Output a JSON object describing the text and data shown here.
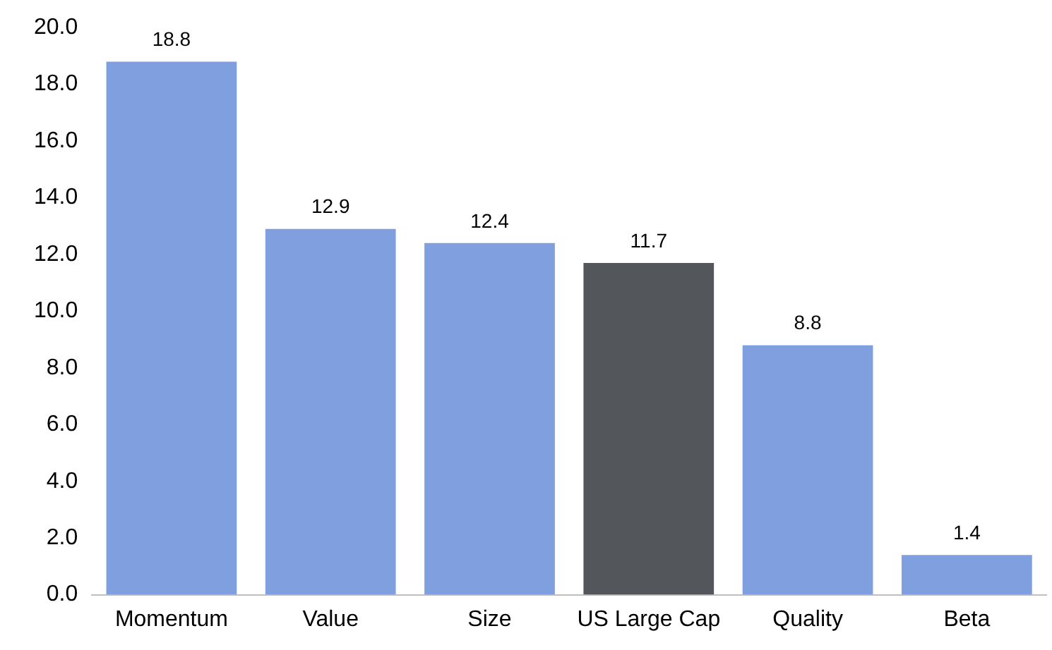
{
  "chart_data": {
    "type": "bar",
    "categories": [
      "Momentum",
      "Value",
      "Size",
      "US Large Cap",
      "Quality",
      "Beta"
    ],
    "values": [
      18.8,
      12.9,
      12.4,
      11.7,
      8.8,
      1.4
    ],
    "colors": [
      "#7f9fdf",
      "#7f9fdf",
      "#7f9fdf",
      "#53575b",
      "#7f9fdf",
      "#7f9fdf"
    ],
    "ylim": [
      0,
      20
    ],
    "yticks": [
      {
        "value": 0,
        "label": "0.0"
      },
      {
        "value": 2,
        "label": "2.0"
      },
      {
        "value": 4,
        "label": "4.0"
      },
      {
        "value": 6,
        "label": "6.0"
      },
      {
        "value": 8,
        "label": "8.0"
      },
      {
        "value": 10,
        "label": "10.0"
      },
      {
        "value": 12,
        "label": "12.0"
      },
      {
        "value": 14,
        "label": "14.0"
      },
      {
        "value": 16,
        "label": "16.0"
      },
      {
        "value": 18,
        "label": "18.0"
      },
      {
        "value": 20,
        "label": "20.0"
      }
    ],
    "data_labels": true,
    "grid": false,
    "legend": false
  }
}
